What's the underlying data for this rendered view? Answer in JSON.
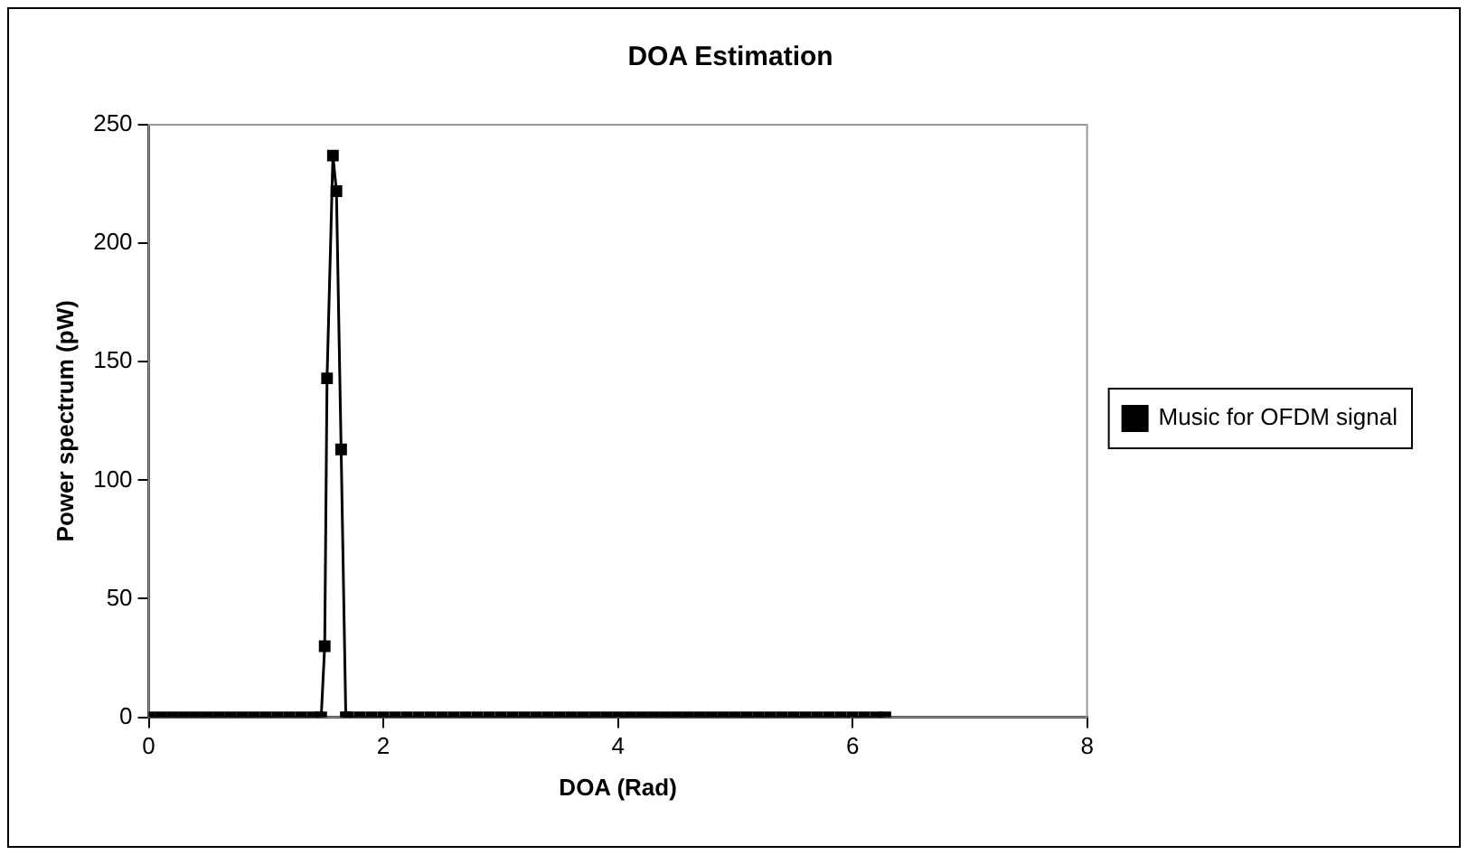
{
  "chart_data": {
    "type": "line",
    "title": "DOA Estimation",
    "xlabel": "DOA (Rad)",
    "ylabel": "Power spectrum (pW)",
    "x": [
      0,
      0.1,
      0.2,
      0.3,
      0.4,
      0.5,
      0.6,
      0.7,
      0.8,
      0.9,
      1.0,
      1.1,
      1.2,
      1.3,
      1.4,
      1.47,
      1.5,
      1.52,
      1.57,
      1.6,
      1.64,
      1.68,
      1.7,
      1.8,
      1.9,
      2.0,
      2.1,
      2.2,
      2.3,
      2.4,
      2.5,
      2.6,
      2.7,
      2.8,
      2.9,
      3.0,
      3.1,
      3.2,
      3.3,
      3.4,
      3.5,
      3.6,
      3.7,
      3.8,
      3.9,
      4.0,
      4.1,
      4.2,
      4.3,
      4.4,
      4.5,
      4.6,
      4.7,
      4.8,
      4.9,
      5.0,
      5.1,
      5.2,
      5.3,
      5.4,
      5.5,
      5.6,
      5.7,
      5.8,
      5.9,
      6.0,
      6.1,
      6.2,
      6.28
    ],
    "series": [
      {
        "name": "Music for OFDM signal",
        "color": "#000000",
        "values": [
          0,
          0,
          0,
          0,
          0,
          0,
          0,
          0,
          0,
          0,
          0,
          0,
          0,
          0,
          0,
          0,
          30,
          143,
          237,
          222,
          113,
          0,
          0,
          0,
          0,
          0,
          0,
          0,
          0,
          0,
          0,
          0,
          0,
          0,
          0,
          0,
          0,
          0,
          0,
          0,
          0,
          0,
          0,
          0,
          0,
          0,
          0,
          0,
          0,
          0,
          0,
          0,
          0,
          0,
          0,
          0,
          0,
          0,
          0,
          0,
          0,
          0,
          0,
          0,
          0,
          0,
          0,
          0,
          0
        ]
      }
    ],
    "xlim": [
      0,
      8
    ],
    "xticks": [
      0,
      2,
      4,
      6,
      8
    ],
    "ylim": [
      0,
      250
    ],
    "yticks": [
      0,
      50,
      100,
      150,
      200,
      250
    ],
    "grid": false,
    "legend": "right",
    "marker": "square",
    "line_style": "solid"
  }
}
